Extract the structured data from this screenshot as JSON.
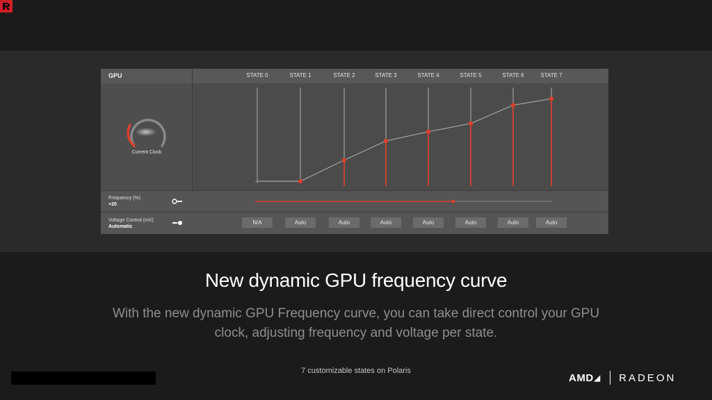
{
  "colors": {
    "accent": "#d9402f",
    "panel": "#4b4b4b",
    "band": "#2a2a2a"
  },
  "panel": {
    "gpu_label": "GPU",
    "gauge_label": "Current Clock",
    "states": [
      {
        "label": "STATE 0",
        "freq": 0,
        "enabled": false
      },
      {
        "label": "STATE 1",
        "freq": 0,
        "enabled": true
      },
      {
        "label": "STATE 2",
        "freq": 23,
        "enabled": true
      },
      {
        "label": "STATE 3",
        "freq": 44,
        "enabled": true
      },
      {
        "label": "STATE 4",
        "freq": 54,
        "enabled": true
      },
      {
        "label": "STATE 5",
        "freq": 63,
        "enabled": true
      },
      {
        "label": "STATE 6",
        "freq": 83,
        "enabled": true
      },
      {
        "label": "STATE 7",
        "freq": 90,
        "enabled": true
      }
    ],
    "frequency": {
      "label": "Frequency (%)",
      "value": "+20",
      "slider_fraction": 0.667
    },
    "voltage": {
      "label": "Voltage Control (mV)",
      "value": "Automatic",
      "buttons": [
        "N/A",
        "Auto",
        "Auto",
        "Auto",
        "Auto",
        "Auto",
        "Auto",
        "Auto"
      ]
    }
  },
  "slide": {
    "title": "New dynamic GPU frequency curve",
    "subtitle": "With the new dynamic GPU Frequency curve, you can take direct control your GPU clock, adjusting frequency and voltage per state.",
    "footnote": "7 customizable states on Polaris"
  },
  "brand": {
    "amd": "AMD",
    "radeon": "RADEON"
  }
}
